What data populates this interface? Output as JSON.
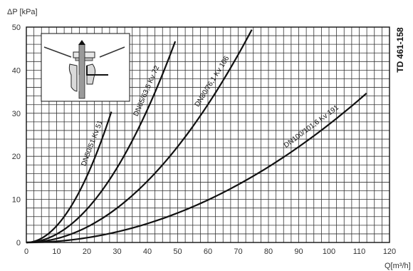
{
  "chart_data": {
    "type": "line",
    "xlabel": "Q[m³/h]",
    "ylabel": "ΔP [kPa]",
    "xlim": [
      0,
      120
    ],
    "ylim": [
      0,
      50
    ],
    "x_ticks": [
      "0",
      "10",
      "20",
      "30",
      "40",
      "50",
      "60",
      "70",
      "80",
      "90",
      "100",
      "110",
      "120"
    ],
    "y_ticks": [
      "0",
      "10",
      "20",
      "30",
      "40",
      "50"
    ],
    "grid": true,
    "document_code": "TD 461-158",
    "series": [
      {
        "name": "DN50/51  Kv 51",
        "kv": 51,
        "x_max": 28.1
      },
      {
        "name": "DN65/63,5  Kv 72",
        "kv": 72,
        "x_max": 49.2
      },
      {
        "name": "DN80/76,1  Kv 106",
        "kv": 106,
        "x_max": 74.5
      },
      {
        "name": "DN100/101,6  Kv 191",
        "kv": 191,
        "x_max": 112.4
      }
    ],
    "colors": {
      "line": "#111111",
      "grid": "#333333",
      "background": "#ffffff"
    }
  }
}
